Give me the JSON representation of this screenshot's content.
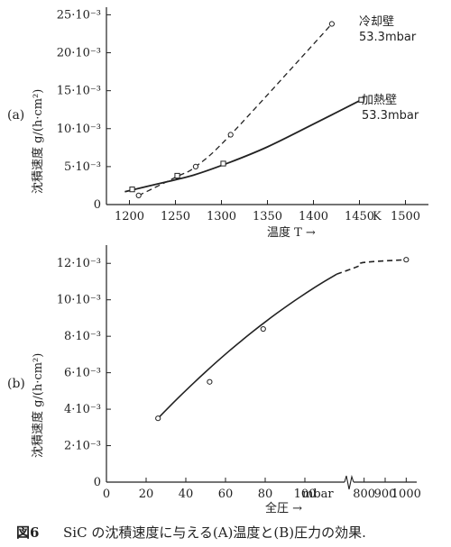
{
  "caption": {
    "figure_no": "図6",
    "text": "SiC の沈積速度に与える(A)温度と(B)圧力の効果."
  },
  "chart_data": [
    {
      "type": "line",
      "panel_label": "(a)",
      "xlabel": "温度 T →",
      "x_unit": "K",
      "ylabel": "沈積速度 g/(h·cm²)",
      "xlim": [
        1175,
        1525
      ],
      "ylim": [
        0,
        26
      ],
      "x_ticks": [
        1200,
        1250,
        1300,
        1350,
        1400,
        1450,
        1500
      ],
      "y_ticks": [
        0,
        5,
        10,
        15,
        20,
        25
      ],
      "y_tick_labels": [
        "0",
        "5·10⁻³",
        "10·10⁻³",
        "15·10⁻³",
        "20·10⁻³",
        "25·10⁻³"
      ],
      "grid": false,
      "series": [
        {
          "name": "冷却壁 53.3mbar",
          "label_line1": "冷却壁",
          "label_line2": "53.3mbar",
          "style": "dashed",
          "x": [
            1210,
            1252,
            1272,
            1310,
            1420
          ],
          "y": [
            1.2,
            3.7,
            5.0,
            9.2,
            23.8
          ]
        },
        {
          "name": "加熱壁 53.3mbar",
          "label_line1": "加熱壁",
          "label_line2": "53.3mbar",
          "style": "solid",
          "x": [
            1203,
            1252,
            1302,
            1452
          ],
          "y": [
            2.0,
            3.8,
            5.4,
            13.8
          ]
        }
      ]
    },
    {
      "type": "line",
      "panel_label": "(b)",
      "xlabel": "全圧 →",
      "x_unit": "mbar",
      "ylabel": "沈積速度 g/(h·cm²)",
      "ylim": [
        0,
        13
      ],
      "x_ticks_left": [
        0,
        20,
        40,
        60,
        80,
        100
      ],
      "x_ticks_right": [
        800,
        900,
        1000
      ],
      "axis_break_between": [
        120,
        750
      ],
      "y_ticks": [
        0,
        2,
        4,
        6,
        8,
        10,
        12
      ],
      "y_tick_labels": [
        "0",
        "2·10⁻³",
        "4·10⁻³",
        "6·10⁻³",
        "8·10⁻³",
        "10·10⁻³",
        "12·10⁻³"
      ],
      "grid": false,
      "series": [
        {
          "style": "solid, dashed across axis break",
          "x": [
            26,
            52,
            79,
            1000
          ],
          "y": [
            3.5,
            5.5,
            8.4,
            12.2
          ]
        }
      ]
    }
  ]
}
